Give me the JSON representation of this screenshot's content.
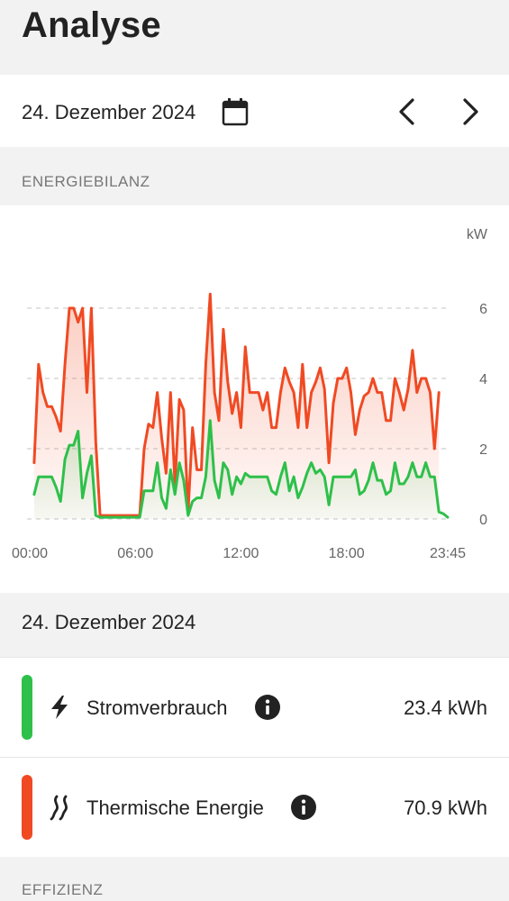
{
  "header": {
    "title": "Analyse"
  },
  "date_bar": {
    "date": "24. Dezember 2024",
    "calendar_icon": "calendar-icon",
    "prev_icon": "chevron-left-icon",
    "next_icon": "chevron-right-icon"
  },
  "sections": {
    "energy": "ENERGIEBILANZ",
    "efficiency": "EFFIZIENZ"
  },
  "summary": {
    "date": "24. Dezember 2024",
    "items": [
      {
        "label": "Stromverbrauch",
        "value": "23.4 kWh",
        "color": "#2ec04a",
        "icon": "lightning-icon"
      },
      {
        "label": "Thermische Energie",
        "value": "70.9 kWh",
        "color": "#f04a23",
        "icon": "heat-waves-icon"
      }
    ]
  },
  "chart_data": {
    "type": "line",
    "ylabel": "kW",
    "ylim": [
      0,
      6.5
    ],
    "yticks": [
      "0",
      "2",
      "4",
      "6"
    ],
    "xticks": [
      "00:00",
      "06:00",
      "12:00",
      "18:00",
      "23:45"
    ],
    "xrange_hours": [
      0,
      23.75
    ],
    "series": [
      {
        "color": "#f04a23",
        "points": [
          [
            0.25,
            1.6
          ],
          [
            0.5,
            4.4
          ],
          [
            0.75,
            3.6
          ],
          [
            1,
            3.2
          ],
          [
            1.25,
            3.2
          ],
          [
            1.5,
            2.9
          ],
          [
            1.75,
            2.5
          ],
          [
            2,
            4.4
          ],
          [
            2.25,
            6
          ],
          [
            2.5,
            6
          ],
          [
            2.75,
            5.6
          ],
          [
            3,
            6
          ],
          [
            3.25,
            3.6
          ],
          [
            3.5,
            6
          ],
          [
            3.75,
            2.2
          ],
          [
            4,
            0.1
          ],
          [
            4.5,
            0.1
          ],
          [
            5,
            0.1
          ],
          [
            5.5,
            0.1
          ],
          [
            6,
            0.1
          ],
          [
            6.25,
            0.1
          ],
          [
            6.5,
            2
          ],
          [
            6.75,
            2.7
          ],
          [
            7,
            2.6
          ],
          [
            7.25,
            3.6
          ],
          [
            7.5,
            2.3
          ],
          [
            7.75,
            1.3
          ],
          [
            8,
            3.6
          ],
          [
            8.25,
            1
          ],
          [
            8.5,
            3.4
          ],
          [
            8.75,
            3.1
          ],
          [
            9,
            0.2
          ],
          [
            9.25,
            2.6
          ],
          [
            9.5,
            1.4
          ],
          [
            9.75,
            1.4
          ],
          [
            10,
            4.4
          ],
          [
            10.25,
            6.4
          ],
          [
            10.5,
            3.6
          ],
          [
            10.75,
            2.8
          ],
          [
            11,
            5.4
          ],
          [
            11.25,
            3.9
          ],
          [
            11.5,
            3
          ],
          [
            11.75,
            3.6
          ],
          [
            12,
            2.6
          ],
          [
            12.25,
            4.9
          ],
          [
            12.5,
            3.6
          ],
          [
            12.75,
            3.6
          ],
          [
            13,
            3.6
          ],
          [
            13.25,
            3.1
          ],
          [
            13.5,
            3.6
          ],
          [
            13.75,
            2.6
          ],
          [
            14,
            2.6
          ],
          [
            14.25,
            3.6
          ],
          [
            14.5,
            4.3
          ],
          [
            14.75,
            3.9
          ],
          [
            15,
            3.6
          ],
          [
            15.25,
            2.6
          ],
          [
            15.5,
            4.4
          ],
          [
            15.75,
            2.6
          ],
          [
            16,
            3.6
          ],
          [
            16.25,
            3.9
          ],
          [
            16.5,
            4.3
          ],
          [
            16.75,
            3.7
          ],
          [
            17,
            1.6
          ],
          [
            17.25,
            3.3
          ],
          [
            17.5,
            4
          ],
          [
            17.75,
            4
          ],
          [
            18,
            4.3
          ],
          [
            18.25,
            3.6
          ],
          [
            18.5,
            2.4
          ],
          [
            18.75,
            3.1
          ],
          [
            19,
            3.5
          ],
          [
            19.25,
            3.6
          ],
          [
            19.5,
            4
          ],
          [
            19.75,
            3.6
          ],
          [
            20,
            3.6
          ],
          [
            20.25,
            2.8
          ],
          [
            20.5,
            2.8
          ],
          [
            20.75,
            4
          ],
          [
            21,
            3.6
          ],
          [
            21.25,
            3.1
          ],
          [
            21.5,
            3.7
          ],
          [
            21.75,
            4.8
          ],
          [
            22,
            3.6
          ],
          [
            22.25,
            4
          ],
          [
            22.5,
            4
          ],
          [
            22.75,
            3.6
          ],
          [
            23,
            2
          ],
          [
            23.25,
            3.6
          ]
        ]
      },
      {
        "color": "#2ec04a",
        "points": [
          [
            0.25,
            0.7
          ],
          [
            0.5,
            1.2
          ],
          [
            0.75,
            1.2
          ],
          [
            1,
            1.2
          ],
          [
            1.25,
            1.2
          ],
          [
            1.5,
            0.9
          ],
          [
            1.75,
            0.5
          ],
          [
            2,
            1.7
          ],
          [
            2.25,
            2.1
          ],
          [
            2.5,
            2.1
          ],
          [
            2.75,
            2.5
          ],
          [
            3,
            0.6
          ],
          [
            3.25,
            1.3
          ],
          [
            3.5,
            1.8
          ],
          [
            3.75,
            0.1
          ],
          [
            4,
            0.05
          ],
          [
            4.5,
            0.05
          ],
          [
            5,
            0.05
          ],
          [
            5.5,
            0.05
          ],
          [
            6,
            0.05
          ],
          [
            6.25,
            0.05
          ],
          [
            6.5,
            0.8
          ],
          [
            6.75,
            0.8
          ],
          [
            7,
            0.8
          ],
          [
            7.25,
            1.6
          ],
          [
            7.5,
            0.6
          ],
          [
            7.75,
            0.3
          ],
          [
            8,
            1.4
          ],
          [
            8.25,
            0.7
          ],
          [
            8.5,
            1.6
          ],
          [
            8.75,
            1.1
          ],
          [
            9,
            0.1
          ],
          [
            9.25,
            0.5
          ],
          [
            9.5,
            0.6
          ],
          [
            9.75,
            0.6
          ],
          [
            10,
            1.2
          ],
          [
            10.25,
            2.8
          ],
          [
            10.5,
            1.1
          ],
          [
            10.75,
            0.6
          ],
          [
            11,
            1.6
          ],
          [
            11.25,
            1.4
          ],
          [
            11.5,
            0.7
          ],
          [
            11.75,
            1.2
          ],
          [
            12,
            1
          ],
          [
            12.25,
            1.3
          ],
          [
            12.5,
            1.2
          ],
          [
            12.75,
            1.2
          ],
          [
            13,
            1.2
          ],
          [
            13.25,
            1.2
          ],
          [
            13.5,
            1.2
          ],
          [
            13.75,
            0.8
          ],
          [
            14,
            0.7
          ],
          [
            14.25,
            1.2
          ],
          [
            14.5,
            1.6
          ],
          [
            14.75,
            0.8
          ],
          [
            15,
            1.2
          ],
          [
            15.25,
            0.6
          ],
          [
            15.5,
            0.9
          ],
          [
            15.75,
            1.3
          ],
          [
            16,
            1.6
          ],
          [
            16.25,
            1.3
          ],
          [
            16.5,
            1.4
          ],
          [
            16.75,
            1.2
          ],
          [
            17,
            0.4
          ],
          [
            17.25,
            1.2
          ],
          [
            17.5,
            1.2
          ],
          [
            17.75,
            1.2
          ],
          [
            18,
            1.2
          ],
          [
            18.25,
            1.2
          ],
          [
            18.5,
            1.4
          ],
          [
            18.75,
            0.7
          ],
          [
            19,
            0.8
          ],
          [
            19.25,
            1.1
          ],
          [
            19.5,
            1.6
          ],
          [
            19.75,
            1.1
          ],
          [
            20,
            1.1
          ],
          [
            20.25,
            0.7
          ],
          [
            20.5,
            0.8
          ],
          [
            20.75,
            1.6
          ],
          [
            21,
            1
          ],
          [
            21.25,
            1
          ],
          [
            21.5,
            1.2
          ],
          [
            21.75,
            1.6
          ],
          [
            22,
            1.2
          ],
          [
            22.25,
            1.2
          ],
          [
            22.5,
            1.6
          ],
          [
            22.75,
            1.2
          ],
          [
            23,
            1.2
          ],
          [
            23.25,
            0.2
          ],
          [
            23.5,
            0.15
          ],
          [
            23.75,
            0.05
          ]
        ]
      }
    ]
  }
}
